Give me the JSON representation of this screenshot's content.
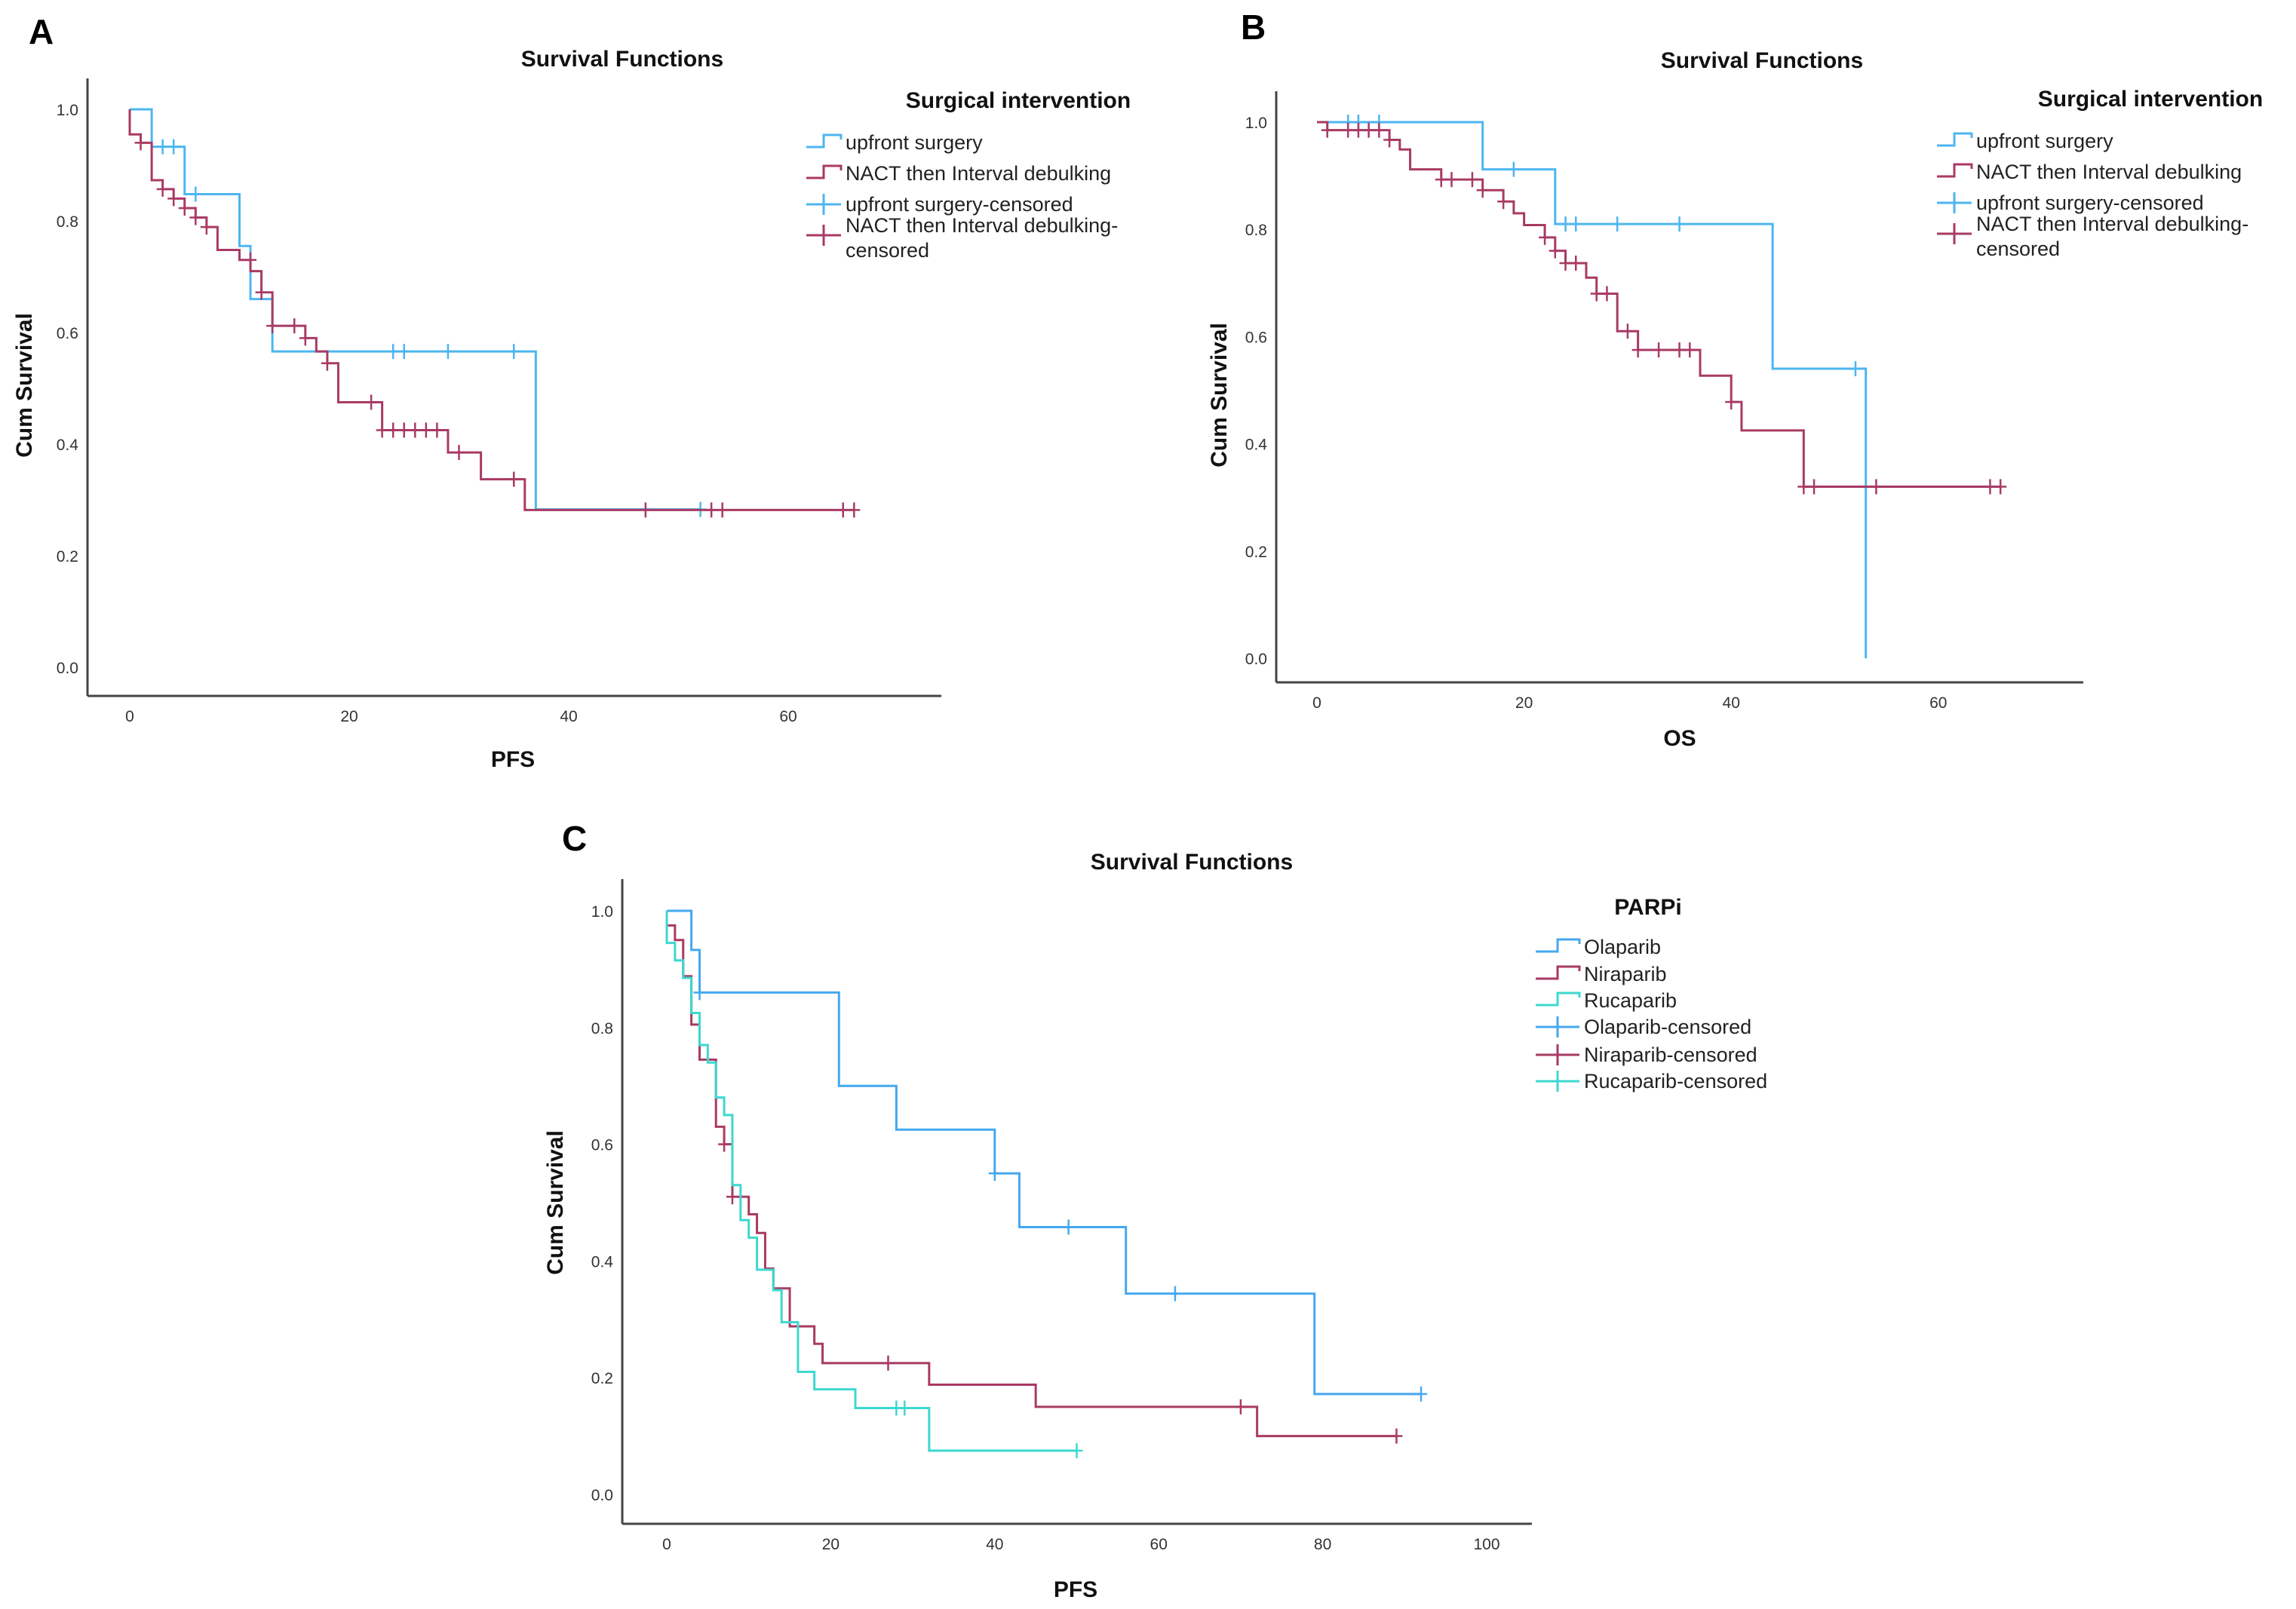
{
  "chart_data": [
    {
      "panel": "A",
      "type": "line",
      "title": "Survival Functions",
      "xlabel": "PFS",
      "ylabel": "Cum Survival",
      "xlim": [
        0,
        74
      ],
      "ylim": [
        0,
        1.05
      ],
      "xticks": [
        "0",
        "20",
        "40",
        "60"
      ],
      "xtick_values": [
        0,
        20,
        40,
        60
      ],
      "yticks": [
        "0.0",
        "0.2",
        "0.4",
        "0.6",
        "0.8",
        "1.0"
      ],
      "ytick_values": [
        0,
        0.2,
        0.4,
        0.6,
        0.8,
        1.0
      ],
      "legend_title": "Surgical intervention",
      "legend_placement": "top-right",
      "legend": [
        "upfront surgery",
        "NACT then Interval debulking",
        "upfront surgery-censored",
        "NACT then Interval debulking-censored"
      ],
      "series": [
        {
          "name": "upfront surgery",
          "color": "#4db6f0",
          "steps": [
            [
              0,
              1.0
            ],
            [
              2,
              0.933
            ],
            [
              5,
              0.848
            ],
            [
              10,
              0.755
            ],
            [
              11,
              0.66
            ],
            [
              13,
              0.566
            ],
            [
              37,
              0.283
            ]
          ],
          "end": 52,
          "censored": [
            [
              3,
              0.933
            ],
            [
              4,
              0.933
            ],
            [
              6,
              0.848
            ],
            [
              24,
              0.566
            ],
            [
              25,
              0.566
            ],
            [
              29,
              0.566
            ],
            [
              35,
              0.566
            ],
            [
              52,
              0.283
            ]
          ]
        },
        {
          "name": "NACT then Interval debulking",
          "color": "#a93a64",
          "steps": [
            [
              0,
              1.0
            ],
            [
              0,
              0.955
            ],
            [
              1,
              0.94
            ],
            [
              2,
              0.873
            ],
            [
              3,
              0.857
            ],
            [
              4,
              0.84
            ],
            [
              5,
              0.823
            ],
            [
              6,
              0.806
            ],
            [
              7,
              0.789
            ],
            [
              8,
              0.748
            ],
            [
              10,
              0.73
            ],
            [
              11,
              0.71
            ],
            [
              12,
              0.672
            ],
            [
              13,
              0.612
            ],
            [
              16,
              0.59
            ],
            [
              17,
              0.566
            ],
            [
              18,
              0.545
            ],
            [
              19,
              0.475
            ],
            [
              23,
              0.425
            ],
            [
              29,
              0.385
            ],
            [
              32,
              0.337
            ],
            [
              36,
              0.282
            ]
          ],
          "end": 66,
          "censored": [
            [
              1,
              0.94
            ],
            [
              3,
              0.857
            ],
            [
              4,
              0.84
            ],
            [
              5,
              0.823
            ],
            [
              6,
              0.806
            ],
            [
              7,
              0.789
            ],
            [
              11,
              0.73
            ],
            [
              12,
              0.672
            ],
            [
              13,
              0.612
            ],
            [
              15,
              0.612
            ],
            [
              16,
              0.59
            ],
            [
              18,
              0.545
            ],
            [
              22,
              0.475
            ],
            [
              23,
              0.425
            ],
            [
              24,
              0.425
            ],
            [
              25,
              0.425
            ],
            [
              26,
              0.425
            ],
            [
              27,
              0.425
            ],
            [
              28,
              0.425
            ],
            [
              30,
              0.385
            ],
            [
              35,
              0.337
            ],
            [
              47,
              0.282
            ],
            [
              53,
              0.282
            ],
            [
              54,
              0.282
            ],
            [
              65,
              0.282
            ],
            [
              66,
              0.282
            ]
          ]
        }
      ]
    },
    {
      "panel": "B",
      "type": "line",
      "title": "Survival Functions",
      "xlabel": "OS",
      "ylabel": "Cum Survival",
      "xlim": [
        0,
        74
      ],
      "ylim": [
        0,
        1.05
      ],
      "xticks": [
        "0",
        "20",
        "40",
        "60"
      ],
      "xtick_values": [
        0,
        20,
        40,
        60
      ],
      "yticks": [
        "0.0",
        "0.2",
        "0.4",
        "0.6",
        "0.8",
        "1.0"
      ],
      "ytick_values": [
        0,
        0.2,
        0.4,
        0.6,
        0.8,
        1.0
      ],
      "legend_title": "Surgical intervention",
      "legend_placement": "top-right",
      "legend": [
        "upfront surgery",
        "NACT then Interval debulking",
        "upfront surgery-censored",
        "NACT then Interval debulking-censored"
      ],
      "series": [
        {
          "name": "upfront surgery",
          "color": "#4db6f0",
          "steps": [
            [
              0,
              1.0
            ],
            [
              16,
              0.912
            ],
            [
              23,
              0.81
            ],
            [
              44,
              0.54
            ],
            [
              53,
              0.0
            ]
          ],
          "end": 53,
          "censored": [
            [
              3,
              1.0
            ],
            [
              4,
              1.0
            ],
            [
              6,
              1.0
            ],
            [
              19,
              0.912
            ],
            [
              24,
              0.81
            ],
            [
              25,
              0.81
            ],
            [
              29,
              0.81
            ],
            [
              35,
              0.81
            ],
            [
              52,
              0.54
            ]
          ]
        },
        {
          "name": "NACT then Interval debulking",
          "color": "#a93a64",
          "steps": [
            [
              0,
              1.0
            ],
            [
              1,
              0.985
            ],
            [
              7,
              0.967
            ],
            [
              8,
              0.949
            ],
            [
              9,
              0.912
            ],
            [
              12,
              0.893
            ],
            [
              16,
              0.873
            ],
            [
              18,
              0.852
            ],
            [
              19,
              0.83
            ],
            [
              20,
              0.808
            ],
            [
              22,
              0.785
            ],
            [
              23,
              0.76
            ],
            [
              24,
              0.737
            ],
            [
              26,
              0.71
            ],
            [
              27,
              0.68
            ],
            [
              29,
              0.61
            ],
            [
              31,
              0.575
            ],
            [
              37,
              0.527
            ],
            [
              40,
              0.478
            ],
            [
              41,
              0.425
            ],
            [
              47,
              0.32
            ]
          ],
          "end": 66,
          "censored": [
            [
              1,
              0.985
            ],
            [
              3,
              0.985
            ],
            [
              4,
              0.985
            ],
            [
              5,
              0.985
            ],
            [
              6,
              0.985
            ],
            [
              7,
              0.967
            ],
            [
              12,
              0.893
            ],
            [
              13,
              0.893
            ],
            [
              15,
              0.893
            ],
            [
              16,
              0.873
            ],
            [
              18,
              0.852
            ],
            [
              22,
              0.785
            ],
            [
              23,
              0.76
            ],
            [
              24,
              0.737
            ],
            [
              25,
              0.737
            ],
            [
              27,
              0.68
            ],
            [
              28,
              0.68
            ],
            [
              30,
              0.61
            ],
            [
              31,
              0.575
            ],
            [
              33,
              0.575
            ],
            [
              35,
              0.575
            ],
            [
              36,
              0.575
            ],
            [
              40,
              0.478
            ],
            [
              47,
              0.32
            ],
            [
              48,
              0.32
            ],
            [
              54,
              0.32
            ],
            [
              65,
              0.32
            ],
            [
              66,
              0.32
            ]
          ]
        }
      ]
    },
    {
      "panel": "C",
      "type": "line",
      "title": "Survival Functions",
      "xlabel": "PFS",
      "ylabel": "Cum Survival",
      "xlim": [
        0,
        106
      ],
      "ylim": [
        0,
        1.05
      ],
      "xticks": [
        "0",
        "20",
        "40",
        "60",
        "80",
        "100"
      ],
      "xtick_values": [
        0,
        20,
        40,
        60,
        80,
        100
      ],
      "yticks": [
        "0.0",
        "0.2",
        "0.4",
        "0.6",
        "0.8",
        "1.0"
      ],
      "ytick_values": [
        0,
        0.2,
        0.4,
        0.6,
        0.8,
        1.0
      ],
      "legend_title": "PARPi",
      "legend_placement": "top-right",
      "legend": [
        "Olaparib",
        "Niraparib",
        "Rucaparib",
        "Olaparib-censored",
        "Niraparib-censored",
        "Rucaparib-censored"
      ],
      "series": [
        {
          "name": "Olaparib",
          "color": "#45a8f0",
          "steps": [
            [
              0,
              1.0
            ],
            [
              3,
              0.933
            ],
            [
              4,
              0.86
            ],
            [
              21,
              0.7
            ],
            [
              28,
              0.625
            ],
            [
              40,
              0.55
            ],
            [
              43,
              0.458
            ],
            [
              56,
              0.344
            ],
            [
              79,
              0.172
            ]
          ],
          "end": 92,
          "censored": [
            [
              4,
              0.86
            ],
            [
              40,
              0.55
            ],
            [
              49,
              0.458
            ],
            [
              62,
              0.344
            ],
            [
              92,
              0.172
            ]
          ]
        },
        {
          "name": "Niraparib",
          "color": "#a93a64",
          "steps": [
            [
              0,
              1.0
            ],
            [
              0,
              0.975
            ],
            [
              1,
              0.95
            ],
            [
              2,
              0.888
            ],
            [
              3,
              0.805
            ],
            [
              4,
              0.745
            ],
            [
              6,
              0.63
            ],
            [
              7,
              0.6
            ],
            [
              8,
              0.51
            ],
            [
              10,
              0.48
            ],
            [
              11,
              0.448
            ],
            [
              12,
              0.387
            ],
            [
              13,
              0.353
            ],
            [
              15,
              0.288
            ],
            [
              18,
              0.258
            ],
            [
              19,
              0.225
            ],
            [
              32,
              0.188
            ],
            [
              45,
              0.15
            ],
            [
              72,
              0.1
            ]
          ],
          "end": 89,
          "censored": [
            [
              7,
              0.6
            ],
            [
              8,
              0.51
            ],
            [
              27,
              0.225
            ],
            [
              70,
              0.15
            ],
            [
              89,
              0.1
            ]
          ]
        },
        {
          "name": "Rucaparib",
          "color": "#3dd8d0",
          "steps": [
            [
              0,
              1.0
            ],
            [
              0,
              0.945
            ],
            [
              1,
              0.915
            ],
            [
              2,
              0.885
            ],
            [
              3,
              0.825
            ],
            [
              4,
              0.77
            ],
            [
              5,
              0.74
            ],
            [
              6,
              0.68
            ],
            [
              7,
              0.65
            ],
            [
              8,
              0.53
            ],
            [
              9,
              0.47
            ],
            [
              10,
              0.44
            ],
            [
              11,
              0.385
            ],
            [
              13,
              0.35
            ],
            [
              14,
              0.295
            ],
            [
              16,
              0.21
            ],
            [
              18,
              0.18
            ],
            [
              23,
              0.148
            ],
            [
              32,
              0.075
            ]
          ],
          "end": 50,
          "censored": [
            [
              28,
              0.148
            ],
            [
              29,
              0.148
            ],
            [
              50,
              0.075
            ]
          ]
        }
      ]
    }
  ]
}
